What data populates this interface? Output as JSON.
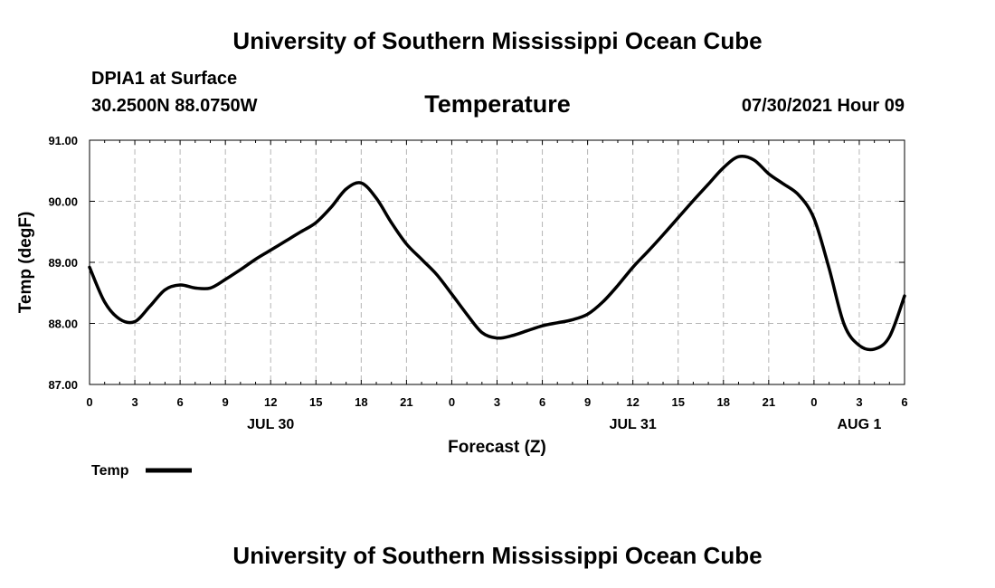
{
  "header": {
    "top_title": "University of Southern Mississippi Ocean Cube",
    "station": "DPIA1 at Surface",
    "coords": "30.2500N  88.0750W",
    "datetime": "07/30/2021 Hour 09"
  },
  "footer": {
    "bottom_title": "University of Southern Mississippi Ocean Cube"
  },
  "chart_data": {
    "type": "line",
    "title": "Temperature",
    "xlabel": "Forecast (Z)",
    "ylabel": "Temp (degF)",
    "ylim": [
      87.0,
      91.0
    ],
    "xlim": [
      0,
      54
    ],
    "y_ticks": [
      87.0,
      88.0,
      89.0,
      90.0,
      91.0
    ],
    "y_tick_labels": [
      "87.00",
      "88.00",
      "89.00",
      "90.00",
      "91.00"
    ],
    "x_ticks": [
      0,
      3,
      6,
      9,
      12,
      15,
      18,
      21,
      24,
      27,
      30,
      33,
      36,
      39,
      42,
      45,
      48,
      51,
      54
    ],
    "x_tick_labels": [
      "0",
      "3",
      "6",
      "9",
      "12",
      "15",
      "18",
      "21",
      "0",
      "3",
      "6",
      "9",
      "12",
      "15",
      "18",
      "21",
      "0",
      "3",
      "6"
    ],
    "day_labels": [
      {
        "hour": 12,
        "label": "JUL 30"
      },
      {
        "hour": 36,
        "label": "JUL 31"
      },
      {
        "hour": 51,
        "label": "AUG 1"
      }
    ],
    "grid": true,
    "legend": {
      "position": "bottom-left",
      "entries": [
        "Temp"
      ]
    },
    "color": "#000000",
    "series": [
      {
        "name": "Temp",
        "x": [
          0,
          1,
          2,
          3,
          4,
          5,
          6,
          7,
          8,
          9,
          10,
          11,
          12,
          13,
          14,
          15,
          16,
          17,
          18,
          19,
          20,
          21,
          22,
          23,
          24,
          25,
          26,
          27,
          28,
          29,
          30,
          31,
          32,
          33,
          34,
          35,
          36,
          37,
          38,
          39,
          40,
          41,
          42,
          43,
          44,
          45,
          46,
          47,
          48,
          49,
          50,
          51,
          52,
          53,
          54
        ],
        "values": [
          88.92,
          88.35,
          88.07,
          88.03,
          88.28,
          88.55,
          88.63,
          88.58,
          88.58,
          88.72,
          88.88,
          89.05,
          89.2,
          89.35,
          89.5,
          89.65,
          89.9,
          90.2,
          90.3,
          90.05,
          89.65,
          89.3,
          89.05,
          88.8,
          88.48,
          88.15,
          87.85,
          87.76,
          87.8,
          87.88,
          87.96,
          88.01,
          88.06,
          88.15,
          88.35,
          88.62,
          88.92,
          89.18,
          89.45,
          89.73,
          90.01,
          90.28,
          90.55,
          90.73,
          90.68,
          90.45,
          90.28,
          90.1,
          89.72,
          88.9,
          87.98,
          87.64,
          87.58,
          87.78,
          88.45
        ]
      }
    ]
  }
}
